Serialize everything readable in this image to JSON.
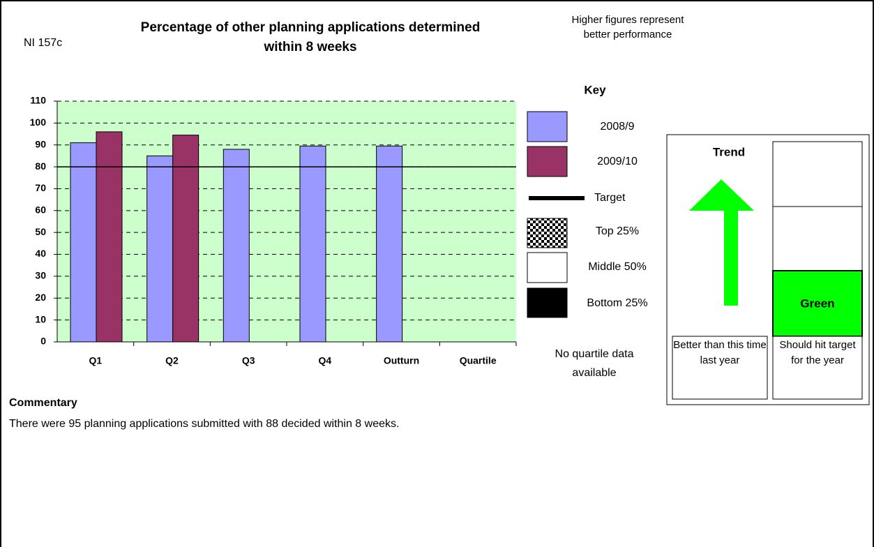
{
  "code": "NI 157c",
  "note": "Higher figures represent better performance",
  "key": {
    "title": "Key",
    "quartiles": [
      "Top 25%",
      "Middle 50%",
      "Bottom 25%"
    ],
    "quartile_note": "No quartile data available"
  },
  "trend": {
    "heading": "Trend",
    "caption": "Better than this time last year"
  },
  "status": {
    "label": "Green",
    "caption": "Should hit target for the year"
  },
  "commentary": {
    "heading": "Commentary",
    "text": "There were 95 planning applications submitted with 88 decided within 8 weeks."
  },
  "chart_data": {
    "type": "bar",
    "title": "Percentage of other planning applications determined within 8 weeks",
    "categories": [
      "Q1",
      "Q2",
      "Q3",
      "Q4",
      "Outturn",
      "Quartile"
    ],
    "series": [
      {
        "name": "2008/9",
        "color": "#9999ff",
        "values": [
          91,
          85,
          88,
          89.5,
          89.5,
          null
        ]
      },
      {
        "name": "2009/10",
        "color": "#993366",
        "values": [
          96,
          94.5,
          null,
          null,
          null,
          null
        ]
      }
    ],
    "target": {
      "name": "Target",
      "value": 80
    },
    "ylim": [
      0,
      110
    ],
    "yticks": [
      0,
      10,
      20,
      30,
      40,
      50,
      60,
      70,
      80,
      90,
      100,
      110
    ],
    "grid": true,
    "background": "#ccffcc"
  }
}
